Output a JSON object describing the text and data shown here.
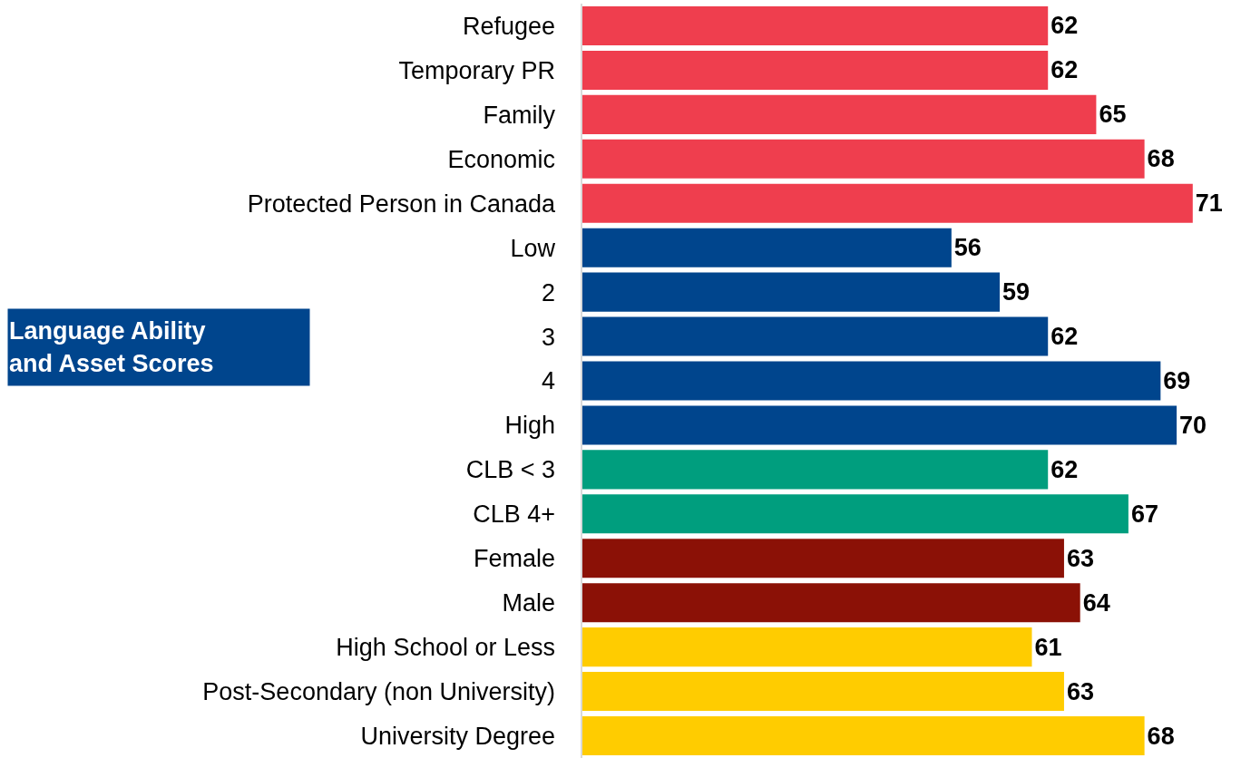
{
  "chart_data": {
    "type": "bar",
    "orientation": "horizontal",
    "categories": [
      "Refugee",
      "Temporary PR",
      "Family",
      "Economic",
      "Protected Person in Canada",
      "Low",
      "2",
      "3",
      "4",
      "High",
      "CLB < 3",
      "CLB 4+",
      "Female",
      "Male",
      "High School or Less",
      "Post-Secondary (non University)",
      "University Degree"
    ],
    "values": [
      62,
      62,
      65,
      68,
      71,
      56,
      59,
      62,
      69,
      70,
      62,
      67,
      63,
      64,
      61,
      63,
      68
    ],
    "colors": [
      "#ef3e4e",
      "#ef3e4e",
      "#ef3e4e",
      "#ef3e4e",
      "#ef3e4e",
      "#00458d",
      "#00458d",
      "#00458d",
      "#00458d",
      "#00458d",
      "#009e7e",
      "#009e7e",
      "#8b1106",
      "#8b1106",
      "#ffcc00",
      "#ffcc00",
      "#ffcc00"
    ],
    "xlim": [
      33,
      74
    ],
    "data_labels": true,
    "tick_labels": "y",
    "grid": false,
    "legend": false,
    "annotations": [
      "Language Ability\nand Asset Scores"
    ]
  }
}
